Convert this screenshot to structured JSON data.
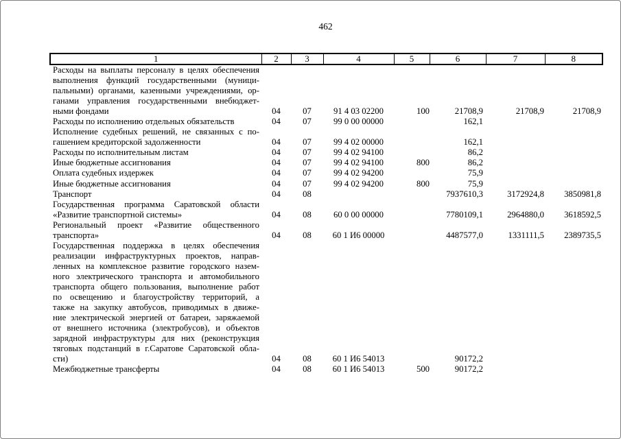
{
  "page": {
    "number": "462"
  },
  "table": {
    "column_headers": [
      "1",
      "2",
      "3",
      "4",
      "5",
      "6",
      "7",
      "8"
    ],
    "rows": [
      {
        "name_lines": [
          "Расходы на выплаты персоналу в целях обеспечения",
          "выполнения функций государственными (муници-",
          "пальными) органами, казенными учреждениями, ор-",
          "ганами управления государственными внебюджет-",
          "ными фондами"
        ],
        "c2": "04",
        "c3": "07",
        "c4": "91 4 03 02200",
        "c5": "100",
        "c6": "21708,9",
        "c7": "21708,9",
        "c8": "21708,9"
      },
      {
        "name_lines": [
          "Расходы по исполнению отдельных обязательств"
        ],
        "c2": "04",
        "c3": "07",
        "c4": "99 0 00 00000",
        "c5": "",
        "c6": "162,1",
        "c7": "",
        "c8": ""
      },
      {
        "name_lines": [
          "Исполнение судебных решений, не связанных с по-",
          "гашением кредиторской задолженности"
        ],
        "c2": "04",
        "c3": "07",
        "c4": "99 4 02 00000",
        "c5": "",
        "c6": "162,1",
        "c7": "",
        "c8": ""
      },
      {
        "name_lines": [
          "Расходы по исполнительным листам"
        ],
        "c2": "04",
        "c3": "07",
        "c4": "99 4 02 94100",
        "c5": "",
        "c6": "86,2",
        "c7": "",
        "c8": ""
      },
      {
        "name_lines": [
          "Иные бюджетные ассигнования"
        ],
        "c2": "04",
        "c3": "07",
        "c4": "99 4 02 94100",
        "c5": "800",
        "c6": "86,2",
        "c7": "",
        "c8": ""
      },
      {
        "name_lines": [
          "Оплата судебных издержек"
        ],
        "c2": "04",
        "c3": "07",
        "c4": "99 4 02 94200",
        "c5": "",
        "c6": "75,9",
        "c7": "",
        "c8": ""
      },
      {
        "name_lines": [
          "Иные бюджетные ассигнования"
        ],
        "c2": "04",
        "c3": "07",
        "c4": "99 4 02 94200",
        "c5": "800",
        "c6": "75,9",
        "c7": "",
        "c8": ""
      },
      {
        "name_lines": [
          "Транспорт"
        ],
        "c2": "04",
        "c3": "08",
        "c4": "",
        "c5": "",
        "c6": "7937610,3",
        "c7": "3172924,8",
        "c8": "3850981,8"
      },
      {
        "name_lines": [
          "Государственная программа Саратовской области",
          "«Развитие транспортной системы»"
        ],
        "c2": "04",
        "c3": "08",
        "c4": "60 0 00 00000",
        "c5": "",
        "c6": "7780109,1",
        "c7": "2964880,0",
        "c8": "3618592,5"
      },
      {
        "name_lines": [
          "Региональный проект «Развитие общественного",
          "транспорта»"
        ],
        "c2": "04",
        "c3": "08",
        "c4": "60 1 И6 00000",
        "c5": "",
        "c6": "4487577,0",
        "c7": "1331111,5",
        "c8": "2389735,5"
      },
      {
        "name_lines": [
          "Государственная поддержка в целях обеспечения",
          "реализации инфраструктурных проектов, направ-",
          "ленных на комплексное развитие городского назем-",
          "ного электрического транспорта и автомобильного",
          "транспорта общего пользования, выполнение работ",
          "по освещению и благоустройству территорий, а",
          "также на закупку автобусов, приводимых в движе-",
          "ние электрической энергией от батареи, заряжаемой",
          "от внешнего источника (электробусов), и объектов",
          "зарядной инфраструктуры для них (реконструкция",
          "тяговых подстанций в г.Саратове Саратовской обла-",
          "сти)"
        ],
        "c2": "04",
        "c3": "08",
        "c4": "60 1 И6 54013",
        "c5": "",
        "c6": "90172,2",
        "c7": "",
        "c8": ""
      },
      {
        "name_lines": [
          "Межбюджетные трансферты"
        ],
        "c2": "04",
        "c3": "08",
        "c4": "60 1 И6 54013",
        "c5": "500",
        "c6": "90172,2",
        "c7": "",
        "c8": ""
      }
    ]
  }
}
